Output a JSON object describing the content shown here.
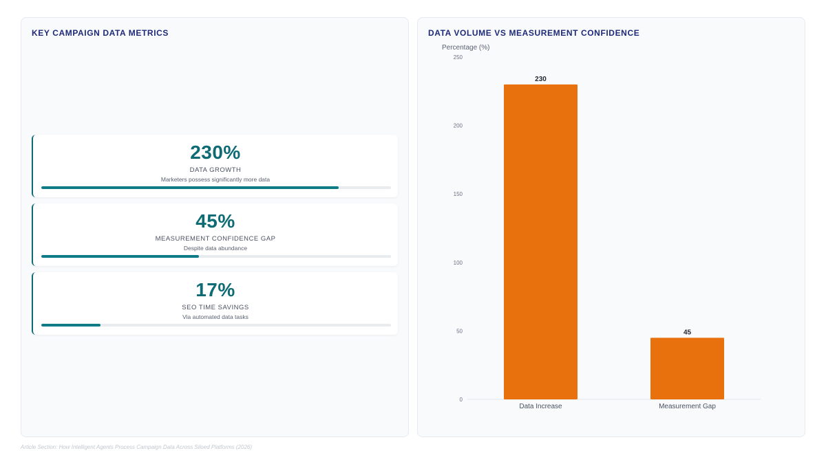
{
  "left_panel": {
    "title": "KEY CAMPAIGN DATA METRICS",
    "metrics": [
      {
        "value": "230%",
        "label": "DATA GROWTH",
        "description": "Marketers possess significantly more data",
        "progress": 0.85
      },
      {
        "value": "45%",
        "label": "MEASUREMENT CONFIDENCE GAP",
        "description": "Despite data abundance",
        "progress": 0.45
      },
      {
        "value": "17%",
        "label": "SEO TIME SAVINGS",
        "description": "Via automated data tasks",
        "progress": 0.17
      }
    ]
  },
  "right_panel": {
    "title": "DATA VOLUME VS MEASUREMENT CONFIDENCE"
  },
  "chart_data": {
    "type": "bar",
    "title": "DATA VOLUME VS MEASUREMENT CONFIDENCE",
    "ylabel": "Percentage (%)",
    "xlabel": "",
    "categories": [
      "Data Increase",
      "Measurement Gap"
    ],
    "values": [
      230,
      45
    ],
    "ylim": [
      0,
      250
    ],
    "yticks": [
      0,
      50,
      100,
      150,
      200,
      250
    ],
    "bar_color": "#e8700d",
    "grid": false,
    "legend": "none"
  },
  "colors": {
    "accent": "#0e6b73",
    "title": "#1e2a78",
    "bar": "#e8700d"
  },
  "footer": "Article Section: How Intelligent Agents Process Campaign Data Across Siloed Platforms (2026)"
}
